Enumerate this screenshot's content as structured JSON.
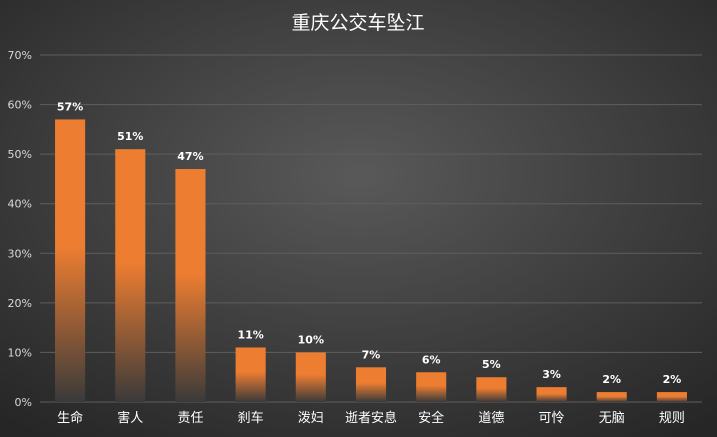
{
  "chart_data": {
    "type": "bar",
    "title": "重庆公交车坠江",
    "categories": [
      "生命",
      "害人",
      "责任",
      "刹车",
      "泼妇",
      "逝者安息",
      "安全",
      "道德",
      "可怜",
      "无脑",
      "规则"
    ],
    "values": [
      57,
      51,
      47,
      11,
      10,
      7,
      6,
      5,
      3,
      2,
      2
    ],
    "data_labels": [
      "57%",
      "51%",
      "47%",
      "11%",
      "10%",
      "7%",
      "6%",
      "5%",
      "3%",
      "2%",
      "2%"
    ],
    "yticks": [
      "0%",
      "10%",
      "20%",
      "30%",
      "40%",
      "50%",
      "60%",
      "70%"
    ],
    "ylim": [
      0,
      70
    ],
    "grid": true,
    "legend": "none",
    "colors": {
      "bar_top": "#ED7D31",
      "bar_bottom": "#3a3a3a",
      "background_center": "#595959",
      "background_edge": "#262626",
      "grid": "#5e5e5e",
      "text": "#ffffff",
      "tick_text": "#d9d9d9"
    }
  }
}
